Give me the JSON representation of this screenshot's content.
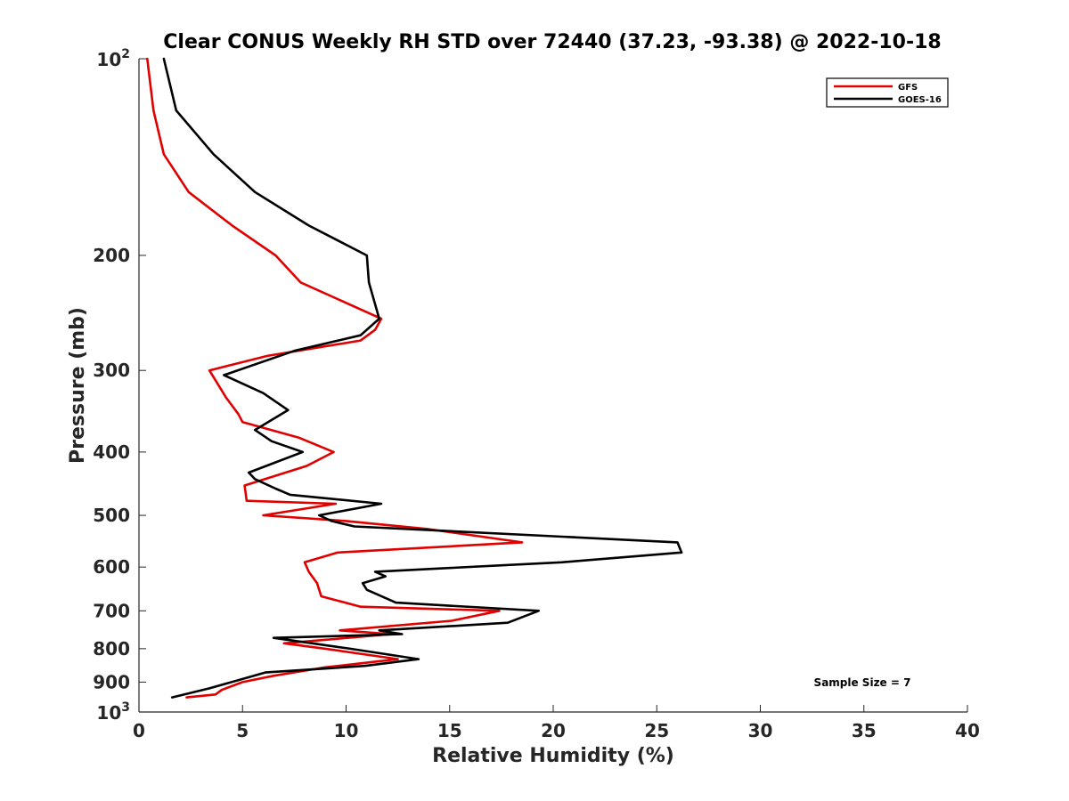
{
  "chart_data": {
    "type": "line",
    "title": "Clear CONUS Weekly RH STD over 72440 (37.23, -93.38) @ 2022-10-18",
    "xlabel": "Relative Humidity (%)",
    "ylabel": "Pressure (mb)",
    "xlim": [
      0,
      40
    ],
    "ylim": [
      100,
      1000
    ],
    "y_scale": "log",
    "y_reversed": true,
    "x_ticks": [
      0,
      5,
      10,
      15,
      20,
      25,
      30,
      35,
      40
    ],
    "x_tick_labels": [
      "0",
      "5",
      "10",
      "15",
      "20",
      "25",
      "30",
      "35",
      "40"
    ],
    "y_ticks": [
      200,
      300,
      400,
      500,
      600,
      700,
      800,
      900
    ],
    "y_tick_labels": [
      "200",
      "300",
      "400",
      "500",
      "600",
      "700",
      "800",
      "900"
    ],
    "y_end_labels": [
      {
        "value": 100,
        "base": "10",
        "exp": "2"
      },
      {
        "value": 1000,
        "base": "10",
        "exp": "3"
      }
    ],
    "legend_position": "top-right",
    "annotation": "Sample Size = 7",
    "series": [
      {
        "name": "GFS",
        "color": "#e00000",
        "points": [
          [
            0.4,
            100
          ],
          [
            0.7,
            120
          ],
          [
            1.2,
            140
          ],
          [
            2.4,
            160
          ],
          [
            4.5,
            180
          ],
          [
            6.6,
            200
          ],
          [
            7.8,
            220
          ],
          [
            11.7,
            250
          ],
          [
            11.4,
            260
          ],
          [
            10.7,
            270
          ],
          [
            6.2,
            285
          ],
          [
            3.4,
            300
          ],
          [
            4.2,
            330
          ],
          [
            4.8,
            350
          ],
          [
            5.0,
            360
          ],
          [
            7.7,
            380
          ],
          [
            9.4,
            400
          ],
          [
            8.1,
            420
          ],
          [
            5.1,
            450
          ],
          [
            5.2,
            475
          ],
          [
            9.5,
            480
          ],
          [
            6.0,
            500
          ],
          [
            10.0,
            510
          ],
          [
            14.0,
            525
          ],
          [
            18.5,
            550
          ],
          [
            9.6,
            570
          ],
          [
            8.0,
            590
          ],
          [
            8.2,
            610
          ],
          [
            8.6,
            635
          ],
          [
            8.8,
            665
          ],
          [
            10.7,
            690
          ],
          [
            17.4,
            700
          ],
          [
            15.1,
            725
          ],
          [
            9.7,
            750
          ],
          [
            12.2,
            760
          ],
          [
            7.0,
            785
          ],
          [
            9.0,
            800
          ],
          [
            12.5,
            830
          ],
          [
            8.9,
            855
          ],
          [
            6.5,
            880
          ],
          [
            5.0,
            900
          ],
          [
            4.0,
            925
          ],
          [
            3.7,
            940
          ],
          [
            2.3,
            950
          ]
        ]
      },
      {
        "name": "GOES-16",
        "color": "#000000",
        "points": [
          [
            1.2,
            100
          ],
          [
            1.8,
            120
          ],
          [
            3.6,
            140
          ],
          [
            5.6,
            160
          ],
          [
            8.2,
            180
          ],
          [
            11.0,
            200
          ],
          [
            11.1,
            220
          ],
          [
            11.6,
            250
          ],
          [
            10.7,
            265
          ],
          [
            7.5,
            280
          ],
          [
            4.1,
            305
          ],
          [
            6.0,
            325
          ],
          [
            7.2,
            345
          ],
          [
            5.6,
            370
          ],
          [
            6.4,
            385
          ],
          [
            7.9,
            400
          ],
          [
            5.3,
            430
          ],
          [
            5.6,
            440
          ],
          [
            6.6,
            455
          ],
          [
            7.3,
            465
          ],
          [
            11.7,
            480
          ],
          [
            8.7,
            500
          ],
          [
            9.3,
            510
          ],
          [
            10.4,
            520
          ],
          [
            26.0,
            550
          ],
          [
            26.2,
            570
          ],
          [
            20.4,
            590
          ],
          [
            11.4,
            610
          ],
          [
            11.9,
            620
          ],
          [
            10.8,
            635
          ],
          [
            11.0,
            650
          ],
          [
            12.4,
            680
          ],
          [
            19.3,
            700
          ],
          [
            17.8,
            730
          ],
          [
            11.6,
            750
          ],
          [
            12.7,
            760
          ],
          [
            6.5,
            770
          ],
          [
            10.2,
            800
          ],
          [
            13.5,
            830
          ],
          [
            10.9,
            850
          ],
          [
            6.1,
            870
          ],
          [
            5.0,
            890
          ],
          [
            3.4,
            920
          ],
          [
            1.6,
            950
          ]
        ]
      }
    ]
  }
}
